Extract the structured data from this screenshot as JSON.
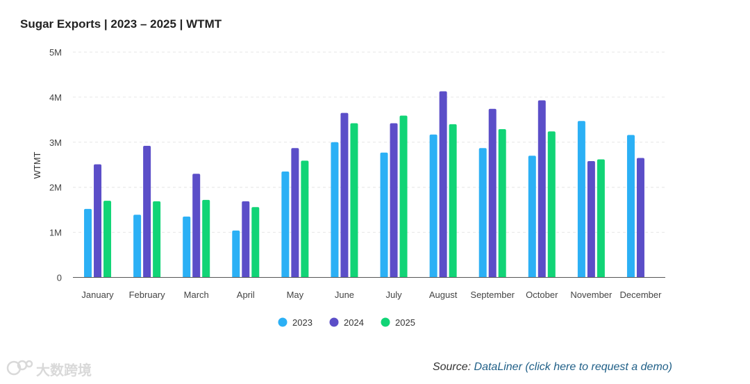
{
  "chart_data": {
    "type": "bar",
    "title": "Sugar Exports | 2023 – 2025 | WTMT",
    "ylabel": "WTMT",
    "xlabel": "",
    "ylim": [
      0,
      5000000
    ],
    "yticks": [
      0,
      1000000,
      2000000,
      3000000,
      4000000,
      5000000
    ],
    "ytick_labels": [
      "0",
      "1M",
      "2M",
      "3M",
      "4M",
      "5M"
    ],
    "grid": true,
    "legend_position": "bottom",
    "categories": [
      "January",
      "February",
      "March",
      "April",
      "May",
      "June",
      "July",
      "August",
      "September",
      "October",
      "November",
      "December"
    ],
    "series": [
      {
        "name": "2023",
        "color": "#2bb0f5",
        "values": [
          1520000,
          1390000,
          1350000,
          1040000,
          2350000,
          3000000,
          2770000,
          3170000,
          2870000,
          2700000,
          3470000,
          3160000
        ]
      },
      {
        "name": "2024",
        "color": "#5b4ec8",
        "values": [
          2510000,
          2920000,
          2300000,
          1690000,
          2870000,
          3650000,
          3420000,
          4130000,
          3740000,
          3930000,
          2580000,
          2650000
        ]
      },
      {
        "name": "2025",
        "color": "#11d476",
        "values": [
          1700000,
          1690000,
          1720000,
          1560000,
          2590000,
          3420000,
          3590000,
          3400000,
          3290000,
          3240000,
          2620000,
          null
        ]
      }
    ]
  },
  "source": {
    "prefix": "Source: ",
    "link_text": "DataLiner (click here to request a demo)"
  },
  "watermark": {
    "text": "大数跨境"
  }
}
